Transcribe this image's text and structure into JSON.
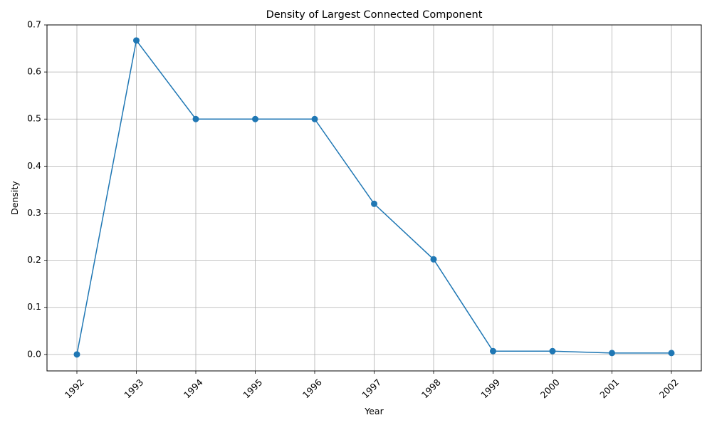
{
  "chart_data": {
    "type": "line",
    "title": "Density of Largest Connected Component",
    "xlabel": "Year",
    "ylabel": "Density",
    "x": [
      "1992",
      "1993",
      "1994",
      "1995",
      "1996",
      "1997",
      "1998",
      "1999",
      "2000",
      "2001",
      "2002"
    ],
    "series": [
      {
        "name": "Density",
        "values": [
          0.0,
          0.667,
          0.5,
          0.5,
          0.5,
          0.32,
          0.202,
          0.007,
          0.007,
          0.003,
          0.003
        ],
        "color": "#1f77b4",
        "marker": "circle"
      }
    ],
    "ylim": [
      -0.035,
      0.7
    ],
    "yticks": [
      "0.0",
      "0.1",
      "0.2",
      "0.3",
      "0.4",
      "0.5",
      "0.6",
      "0.7"
    ],
    "grid": true,
    "xtick_rotation": 45
  }
}
